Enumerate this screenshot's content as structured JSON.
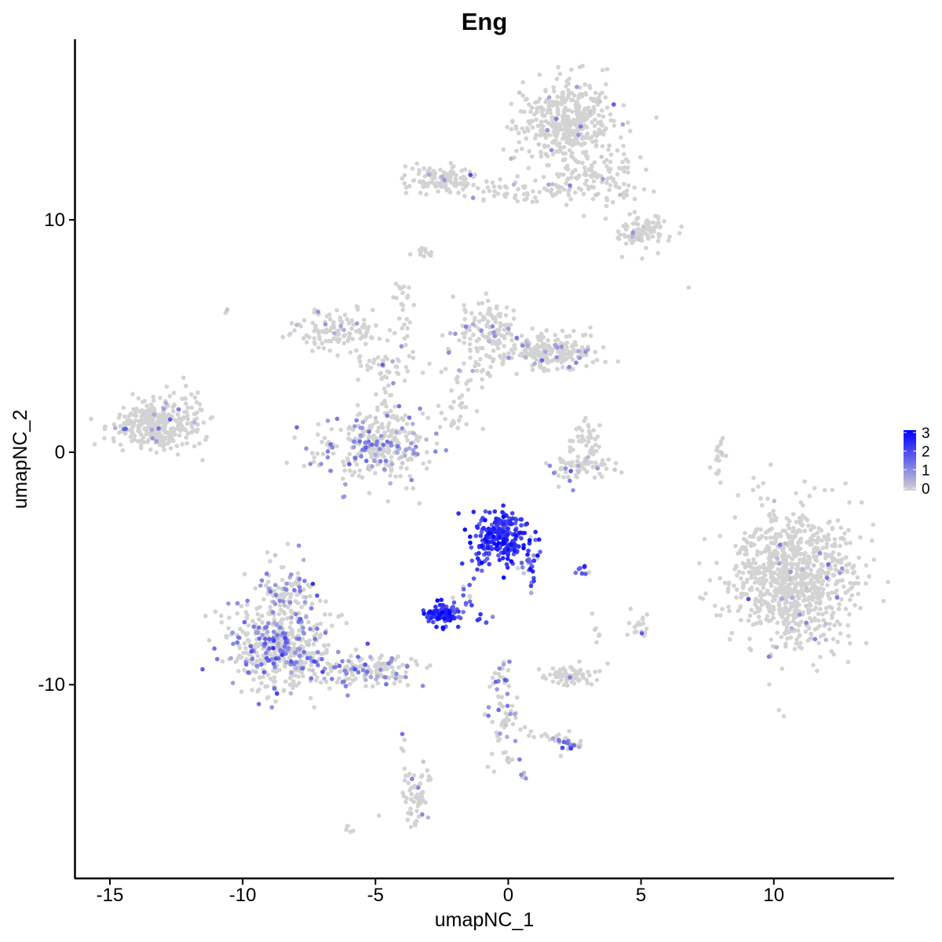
{
  "chart_data": {
    "type": "scatter",
    "title": "Eng",
    "xlabel": "umapNC_1",
    "ylabel": "umapNC_2",
    "xlim": [
      -16.3,
      14.5
    ],
    "ylim": [
      -18.3,
      17.7
    ],
    "x_ticks": [
      -15,
      -10,
      -5,
      0,
      5,
      10
    ],
    "x_tick_labels": [
      "-15",
      "-10",
      "-5",
      "0",
      "5",
      "10"
    ],
    "y_ticks": [
      -10,
      0,
      10
    ],
    "y_tick_labels": [
      "-10",
      "0",
      "10"
    ],
    "grid": false,
    "legend": {
      "placement": "right",
      "min": 0,
      "max": 3,
      "ticks": [
        0,
        1,
        2,
        3
      ],
      "tick_labels": [
        "0",
        "1",
        "2",
        "3"
      ]
    },
    "colors": {
      "low": "#d3d3d3",
      "high": "#0000ff"
    },
    "clusters": [
      {
        "cx": 10.8,
        "cy": -5.3,
        "sx": 1.2,
        "sy": 1.5,
        "n": 900,
        "expr": 0.02
      },
      {
        "cx": 2.2,
        "cy": 14.2,
        "sx": 0.9,
        "sy": 0.9,
        "n": 430,
        "expr": 0.05
      },
      {
        "cx": 3.2,
        "cy": 11.7,
        "sx": 0.9,
        "sy": 0.55,
        "n": 110,
        "expr": 0.05
      },
      {
        "cx": -2.5,
        "cy": 11.7,
        "sx": 0.7,
        "sy": 0.3,
        "n": 110,
        "expr": 0.05
      },
      {
        "cx": 0.4,
        "cy": 11.3,
        "sx": 1.1,
        "sy": 0.25,
        "n": 60,
        "expr": 0.05
      },
      {
        "cx": 5.0,
        "cy": 9.5,
        "sx": 0.55,
        "sy": 0.35,
        "n": 100,
        "expr": 0.05
      },
      {
        "cx": -13.3,
        "cy": 1.2,
        "sx": 0.75,
        "sy": 0.5,
        "n": 330,
        "expr": 0.03
      },
      {
        "cx": -6.4,
        "cy": 5.2,
        "sx": 0.9,
        "sy": 0.45,
        "n": 120,
        "expr": 0.12
      },
      {
        "cx": -4.5,
        "cy": 3.6,
        "sx": 0.5,
        "sy": 0.4,
        "n": 40,
        "expr": 0.2
      },
      {
        "cx": -3.9,
        "cy": 6.2,
        "sx": 0.22,
        "sy": 0.8,
        "n": 25,
        "expr": 0.05
      },
      {
        "cx": -5.0,
        "cy": 0.2,
        "sx": 1.0,
        "sy": 0.7,
        "n": 300,
        "expr": 0.45
      },
      {
        "cx": -4.5,
        "cy": 2.0,
        "sx": 0.2,
        "sy": 0.5,
        "n": 18,
        "expr": 0.1
      },
      {
        "cx": -0.6,
        "cy": 5.3,
        "sx": 0.45,
        "sy": 0.6,
        "n": 120,
        "expr": 0.1
      },
      {
        "cx": 1.6,
        "cy": 4.3,
        "sx": 1.0,
        "sy": 0.35,
        "n": 210,
        "expr": 0.12
      },
      {
        "cx": -1.5,
        "cy": 3.8,
        "sx": 0.5,
        "sy": 0.7,
        "n": 40,
        "expr": 0.1
      },
      {
        "cx": 2.9,
        "cy": 0.6,
        "sx": 0.3,
        "sy": 0.4,
        "n": 40,
        "expr": 0.08
      },
      {
        "cx": 2.7,
        "cy": -0.7,
        "sx": 0.65,
        "sy": 0.3,
        "n": 70,
        "expr": 0.2
      },
      {
        "cx": -0.3,
        "cy": -3.7,
        "sx": 0.55,
        "sy": 0.55,
        "n": 230,
        "expr": 1.95
      },
      {
        "cx": 0.9,
        "cy": -4.9,
        "sx": 0.18,
        "sy": 0.45,
        "n": 30,
        "expr": 1.4
      },
      {
        "cx": -2.4,
        "cy": -6.9,
        "sx": 0.35,
        "sy": 0.22,
        "n": 95,
        "expr": 2.05
      },
      {
        "cx": -1.6,
        "cy": -6.2,
        "sx": 0.2,
        "sy": 0.35,
        "n": 12,
        "expr": 1.5
      },
      {
        "cx": -0.9,
        "cy": -7.1,
        "sx": 0.12,
        "sy": 0.15,
        "n": 6,
        "expr": 1.4
      },
      {
        "cx": 2.8,
        "cy": -5.1,
        "sx": 0.15,
        "sy": 0.08,
        "n": 8,
        "expr": 1.5
      },
      {
        "cx": -8.6,
        "cy": -8.4,
        "sx": 1.0,
        "sy": 1.0,
        "n": 470,
        "expr": 0.5
      },
      {
        "cx": -8.4,
        "cy": -6.0,
        "sx": 0.5,
        "sy": 0.7,
        "n": 100,
        "expr": 0.35
      },
      {
        "cx": -5.3,
        "cy": -9.4,
        "sx": 1.0,
        "sy": 0.35,
        "n": 150,
        "expr": 0.5
      },
      {
        "cx": 2.4,
        "cy": -9.6,
        "sx": 0.5,
        "sy": 0.22,
        "n": 70,
        "expr": 0.04
      },
      {
        "cx": 2.3,
        "cy": -12.6,
        "sx": 0.25,
        "sy": 0.2,
        "n": 25,
        "expr": 0.7
      },
      {
        "cx": -0.2,
        "cy": -11.0,
        "sx": 0.3,
        "sy": 1.2,
        "n": 70,
        "expr": 0.5
      },
      {
        "cx": -3.5,
        "cy": -14.8,
        "sx": 0.28,
        "sy": 0.65,
        "n": 60,
        "expr": 0.1
      },
      {
        "cx": 4.9,
        "cy": -7.5,
        "sx": 0.2,
        "sy": 0.3,
        "n": 20,
        "expr": 0.02
      },
      {
        "cx": 8.0,
        "cy": -0.4,
        "sx": 0.12,
        "sy": 0.6,
        "n": 20,
        "expr": 0.02
      },
      {
        "cx": -3.2,
        "cy": 8.6,
        "sx": 0.25,
        "sy": 0.12,
        "n": 12,
        "expr": 0.02
      },
      {
        "cx": -11.8,
        "cy": 1.7,
        "sx": 0.3,
        "sy": 0.6,
        "n": 25,
        "expr": 0.02
      },
      {
        "cx": -2.1,
        "cy": 1.6,
        "sx": 0.6,
        "sy": 0.55,
        "n": 25,
        "expr": 0.04
      },
      {
        "cx": 1.4,
        "cy": -12.3,
        "sx": 0.6,
        "sy": 0.2,
        "n": 15,
        "expr": 0.05
      },
      {
        "cx": 0.6,
        "cy": -13.9,
        "sx": 0.08,
        "sy": 0.08,
        "n": 5,
        "expr": 1.0
      },
      {
        "cx": -6.0,
        "cy": -16.2,
        "sx": 0.12,
        "sy": 0.1,
        "n": 5,
        "expr": 0.02
      },
      {
        "cx": 3.3,
        "cy": -7.7,
        "sx": 0.1,
        "sy": 0.2,
        "n": 6,
        "expr": 0.02
      },
      {
        "cx": -10.6,
        "cy": 6.1,
        "sx": 0.05,
        "sy": 0.05,
        "n": 3,
        "expr": 0.3
      },
      {
        "cx": 6.8,
        "cy": 7.1,
        "sx": 0.04,
        "sy": 0.04,
        "n": 1,
        "expr": 0.0
      },
      {
        "cx": 5.1,
        "cy": 8.3,
        "sx": 0.04,
        "sy": 0.04,
        "n": 1,
        "expr": 0.0
      },
      {
        "cx": -4.9,
        "cy": -15.6,
        "sx": 0.04,
        "sy": 0.04,
        "n": 1,
        "expr": 0.0
      },
      {
        "cx": -3.9,
        "cy": -12.3,
        "sx": 0.08,
        "sy": 0.4,
        "n": 4,
        "expr": 0.1
      }
    ]
  }
}
